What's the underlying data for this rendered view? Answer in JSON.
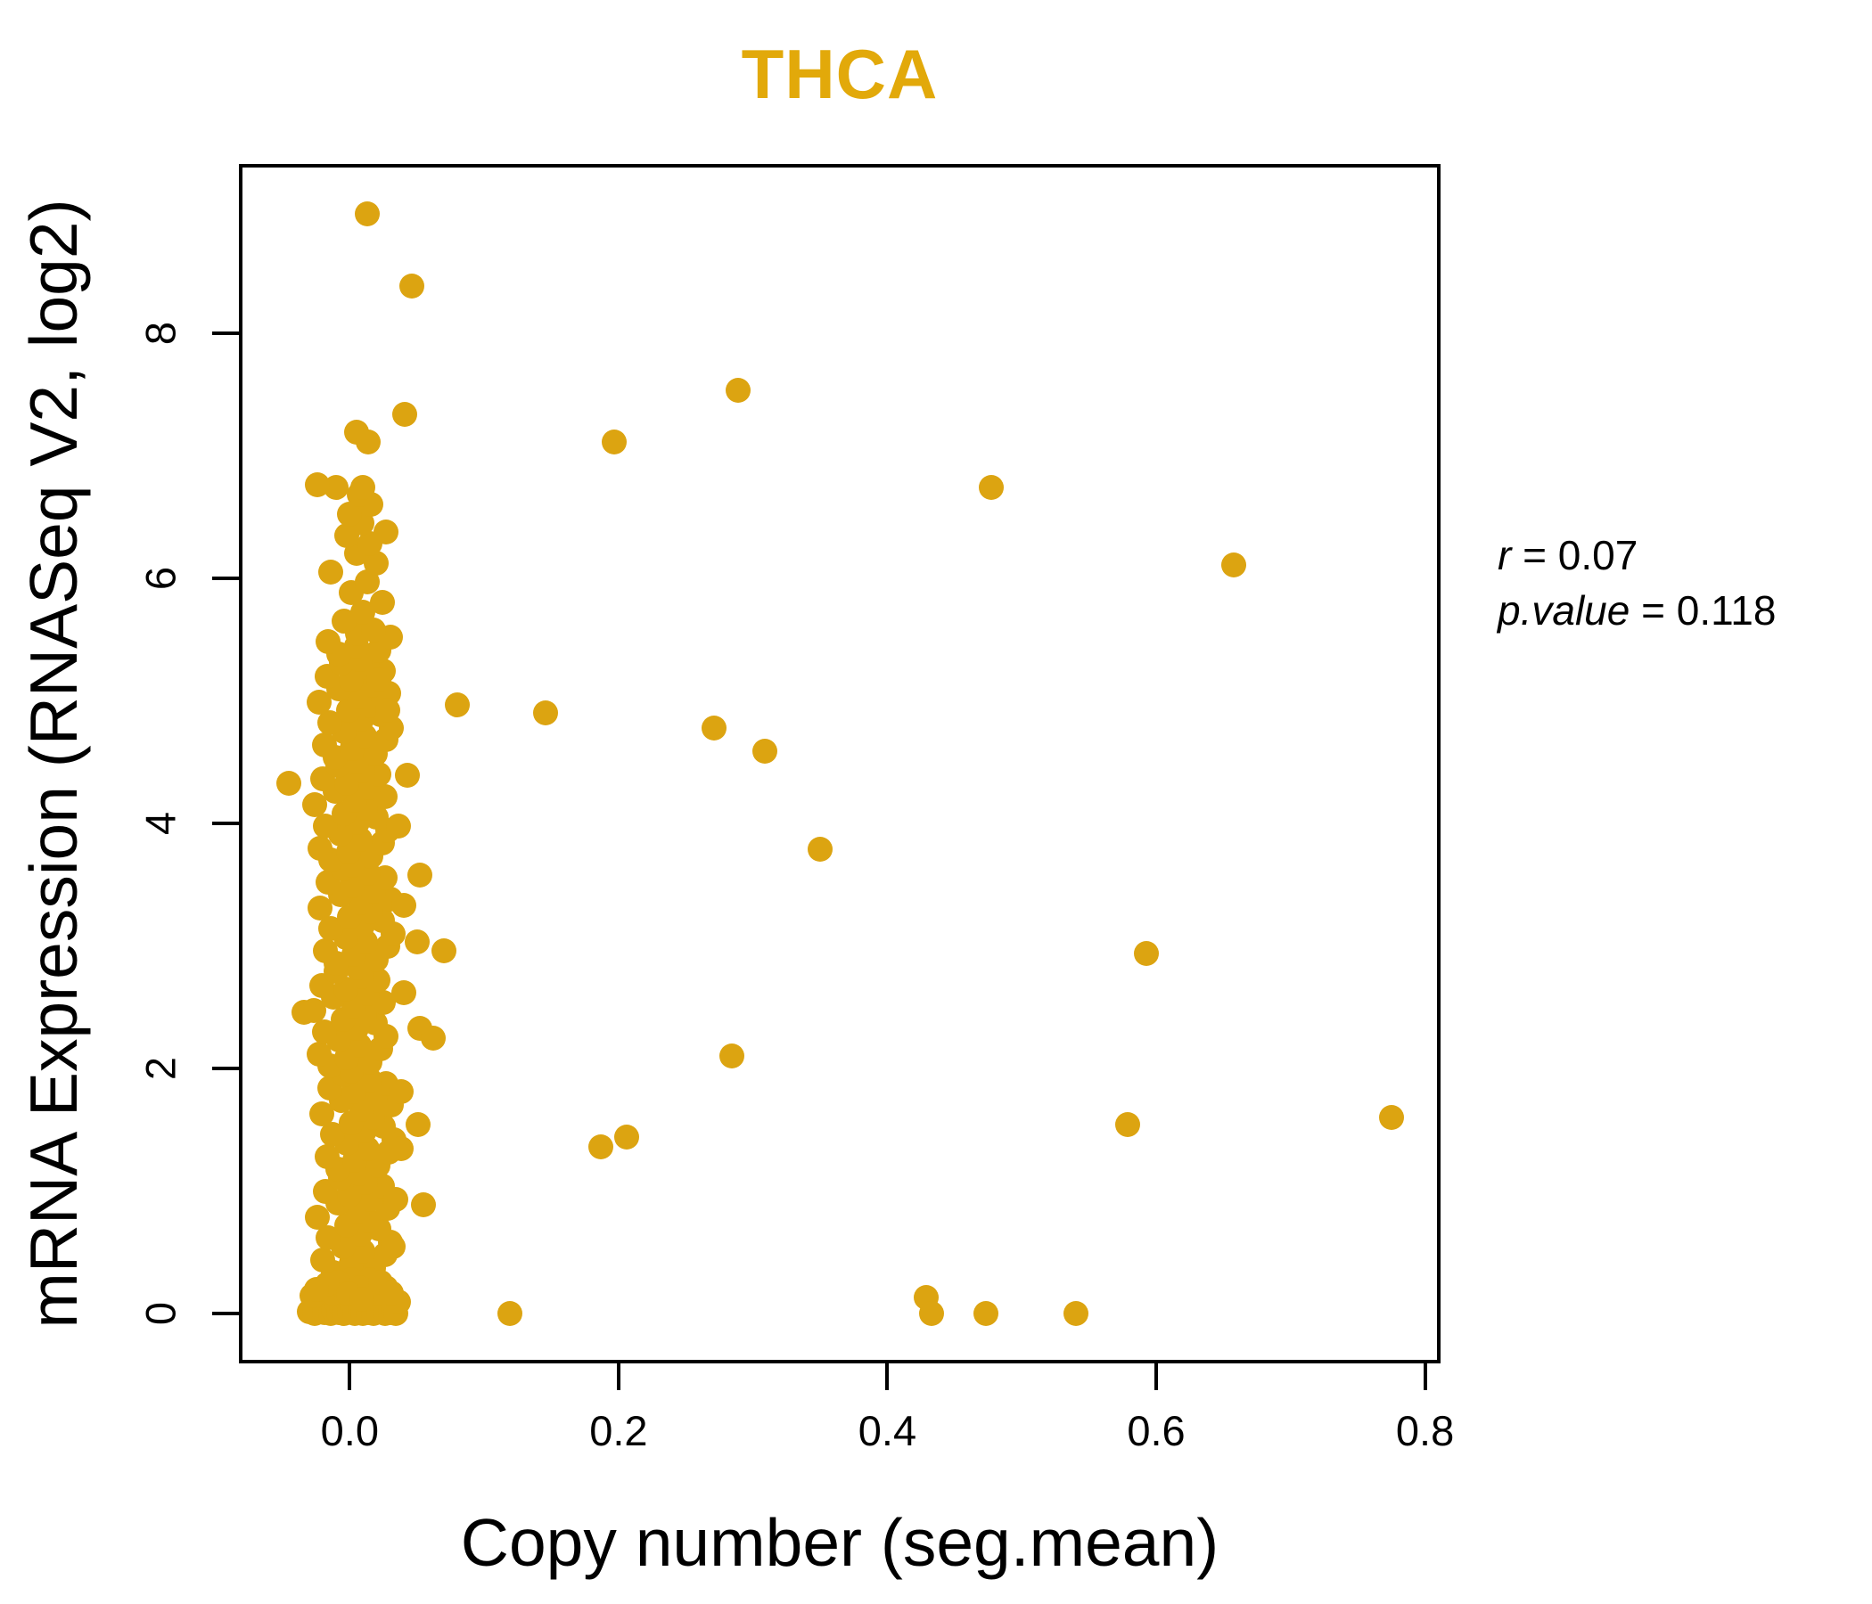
{
  "annotation": {
    "r_name": "r",
    "r_eq": " = 0.07",
    "p_name": "p.value",
    "p_eq": " = 0.118"
  },
  "chart_data": {
    "type": "scatter",
    "title": "THCA",
    "xlabel": "Copy number (seg.mean)",
    "ylabel": "mRNA Expression (RNASeq V2, log2)",
    "title_color": "#E2A90A",
    "point_color": "#DCA411",
    "axis_color": "#000000",
    "grid": false,
    "legend": "none",
    "xlim": [
      -0.0798,
      0.8089
    ],
    "ylim": [
      -0.376,
      9.35
    ],
    "x_ticks": {
      "values": [
        0.0,
        0.2,
        0.4,
        0.6,
        0.8
      ],
      "labels": [
        "0.0",
        "0.2",
        "0.4",
        "0.6",
        "0.8"
      ]
    },
    "y_ticks": {
      "values": [
        0,
        2,
        4,
        6,
        8
      ],
      "labels": [
        "0",
        "2",
        "4",
        "6",
        "8"
      ]
    },
    "correlation": {
      "r": 0.07,
      "p_value": 0.118
    },
    "points": [
      [
        0.004,
        0.3
      ],
      [
        -0.012,
        0.34
      ],
      [
        0.018,
        0.37
      ],
      [
        0.001,
        0.41
      ],
      [
        -0.02,
        0.44
      ],
      [
        0.026,
        0.48
      ],
      [
        0.01,
        0.51
      ],
      [
        -0.005,
        0.55
      ],
      [
        0.03,
        0.58
      ],
      [
        -0.016,
        0.62
      ],
      [
        0.008,
        0.65
      ],
      [
        0.022,
        0.69
      ],
      [
        -0.002,
        0.72
      ],
      [
        0.014,
        0.76
      ],
      [
        -0.024,
        0.79
      ],
      [
        0.006,
        0.83
      ],
      [
        0.028,
        0.86
      ],
      [
        -0.009,
        0.9
      ],
      [
        0.016,
        0.93
      ],
      [
        0.0,
        0.97
      ],
      [
        -0.018,
        1.0
      ],
      [
        0.024,
        1.04
      ],
      [
        0.012,
        1.07
      ],
      [
        -0.007,
        1.11
      ],
      [
        0.007,
        1.14
      ],
      [
        -0.009,
        1.18
      ],
      [
        0.021,
        1.21
      ],
      [
        0.004,
        1.25
      ],
      [
        -0.017,
        1.28
      ],
      [
        0.029,
        1.32
      ],
      [
        0.013,
        1.35
      ],
      [
        -0.002,
        1.39
      ],
      [
        0.033,
        1.42
      ],
      [
        -0.013,
        1.46
      ],
      [
        0.011,
        1.49
      ],
      [
        0.025,
        1.53
      ],
      [
        0.001,
        1.56
      ],
      [
        0.017,
        1.6
      ],
      [
        -0.021,
        1.63
      ],
      [
        0.009,
        1.67
      ],
      [
        0.031,
        1.7
      ],
      [
        -0.006,
        1.74
      ],
      [
        0.019,
        1.77
      ],
      [
        0.003,
        1.81
      ],
      [
        -0.015,
        1.84
      ],
      [
        0.027,
        1.88
      ],
      [
        0.015,
        1.91
      ],
      [
        -0.004,
        1.95
      ],
      [
        0.001,
        1.98
      ],
      [
        -0.015,
        2.02
      ],
      [
        0.015,
        2.05
      ],
      [
        -0.002,
        2.09
      ],
      [
        -0.023,
        2.12
      ],
      [
        0.023,
        2.16
      ],
      [
        0.007,
        2.19
      ],
      [
        -0.008,
        2.23
      ],
      [
        0.027,
        2.26
      ],
      [
        -0.019,
        2.3
      ],
      [
        0.005,
        2.33
      ],
      [
        0.019,
        2.37
      ],
      [
        -0.005,
        2.4
      ],
      [
        0.011,
        2.44
      ],
      [
        -0.027,
        2.47
      ],
      [
        0.003,
        2.51
      ],
      [
        0.025,
        2.54
      ],
      [
        -0.012,
        2.58
      ],
      [
        0.013,
        2.61
      ],
      [
        -0.003,
        2.65
      ],
      [
        -0.021,
        2.68
      ],
      [
        0.021,
        2.72
      ],
      [
        0.009,
        2.75
      ],
      [
        -0.01,
        2.79
      ],
      [
        0.006,
        2.82
      ],
      [
        -0.01,
        2.86
      ],
      [
        0.02,
        2.89
      ],
      [
        0.003,
        2.93
      ],
      [
        -0.018,
        2.96
      ],
      [
        0.028,
        3.0
      ],
      [
        0.012,
        3.03
      ],
      [
        -0.003,
        3.07
      ],
      [
        0.032,
        3.1
      ],
      [
        -0.014,
        3.14
      ],
      [
        0.01,
        3.17
      ],
      [
        0.024,
        3.21
      ],
      [
        0.0,
        3.24
      ],
      [
        0.016,
        3.28
      ],
      [
        -0.022,
        3.31
      ],
      [
        0.008,
        3.35
      ],
      [
        0.03,
        3.38
      ],
      [
        -0.007,
        3.42
      ],
      [
        0.018,
        3.45
      ],
      [
        0.002,
        3.49
      ],
      [
        -0.016,
        3.52
      ],
      [
        0.026,
        3.56
      ],
      [
        0.014,
        3.59
      ],
      [
        -0.005,
        3.63
      ],
      [
        0.002,
        3.66
      ],
      [
        -0.014,
        3.7
      ],
      [
        0.016,
        3.73
      ],
      [
        -0.001,
        3.77
      ],
      [
        -0.022,
        3.8
      ],
      [
        0.024,
        3.84
      ],
      [
        0.008,
        3.87
      ],
      [
        -0.007,
        3.91
      ],
      [
        0.028,
        3.94
      ],
      [
        -0.018,
        3.98
      ],
      [
        0.006,
        4.01
      ],
      [
        0.02,
        4.05
      ],
      [
        -0.004,
        4.08
      ],
      [
        0.012,
        4.12
      ],
      [
        -0.026,
        4.15
      ],
      [
        0.004,
        4.19
      ],
      [
        0.026,
        4.22
      ],
      [
        -0.011,
        4.26
      ],
      [
        0.014,
        4.29
      ],
      [
        -0.002,
        4.33
      ],
      [
        -0.02,
        4.36
      ],
      [
        0.022,
        4.4
      ],
      [
        0.01,
        4.43
      ],
      [
        -0.009,
        4.47
      ],
      [
        0.005,
        4.5
      ],
      [
        -0.011,
        4.54
      ],
      [
        0.019,
        4.57
      ],
      [
        0.002,
        4.61
      ],
      [
        -0.019,
        4.64
      ],
      [
        0.027,
        4.68
      ],
      [
        0.011,
        4.71
      ],
      [
        -0.004,
        4.75
      ],
      [
        0.031,
        4.78
      ],
      [
        -0.015,
        4.82
      ],
      [
        0.009,
        4.85
      ],
      [
        0.023,
        4.89
      ],
      [
        -0.001,
        4.92
      ],
      [
        0.015,
        4.96
      ],
      [
        -0.023,
        4.99
      ],
      [
        0.007,
        5.03
      ],
      [
        0.029,
        5.06
      ],
      [
        -0.008,
        5.1
      ],
      [
        0.017,
        5.13
      ],
      [
        0.001,
        5.17
      ],
      [
        -0.017,
        5.2
      ],
      [
        0.025,
        5.24
      ],
      [
        0.013,
        5.27
      ],
      [
        -0.006,
        5.31
      ],
      [
        0.008,
        5.34
      ],
      [
        -0.008,
        5.38
      ],
      [
        0.022,
        5.41
      ],
      [
        0.005,
        5.45
      ],
      [
        -0.016,
        5.48
      ],
      [
        0.03,
        5.52
      ],
      [
        0.006,
        5.55
      ],
      [
        0.018,
        5.58
      ],
      [
        -0.004,
        5.65
      ],
      [
        0.01,
        5.72
      ],
      [
        0.024,
        5.8
      ],
      [
        0.001,
        5.88
      ],
      [
        0.013,
        5.97
      ],
      [
        -0.014,
        6.05
      ],
      [
        0.02,
        6.12
      ],
      [
        0.005,
        6.2
      ],
      [
        0.015,
        6.28
      ],
      [
        -0.002,
        6.35
      ],
      [
        0.027,
        6.38
      ],
      [
        0.009,
        6.45
      ],
      [
        0.0,
        6.52
      ],
      [
        0.016,
        6.6
      ],
      [
        0.007,
        6.68
      ],
      [
        -0.01,
        6.74
      ],
      [
        -0.03,
        0.02
      ],
      [
        -0.026,
        0.0
      ],
      [
        -0.022,
        0.05
      ],
      [
        -0.019,
        0.01
      ],
      [
        -0.016,
        0.08
      ],
      [
        -0.014,
        0.0
      ],
      [
        -0.012,
        0.03
      ],
      [
        -0.01,
        0.1
      ],
      [
        -0.008,
        0.01
      ],
      [
        -0.006,
        0.06
      ],
      [
        -0.004,
        0.0
      ],
      [
        -0.002,
        0.12
      ],
      [
        0.0,
        0.02
      ],
      [
        0.002,
        0.07
      ],
      [
        0.004,
        0.0
      ],
      [
        0.006,
        0.14
      ],
      [
        0.008,
        0.03
      ],
      [
        0.01,
        0.0
      ],
      [
        0.012,
        0.09
      ],
      [
        0.014,
        0.01
      ],
      [
        0.016,
        0.05
      ],
      [
        0.018,
        0.0
      ],
      [
        0.02,
        0.11
      ],
      [
        0.022,
        0.02
      ],
      [
        0.024,
        0.06
      ],
      [
        0.026,
        0.0
      ],
      [
        0.028,
        0.08
      ],
      [
        0.03,
        0.01
      ],
      [
        0.032,
        0.04
      ],
      [
        0.034,
        0.0
      ],
      [
        0.036,
        0.1
      ],
      [
        -0.028,
        0.15
      ],
      [
        -0.021,
        0.2
      ],
      [
        -0.013,
        0.17
      ],
      [
        -0.005,
        0.22
      ],
      [
        0.003,
        0.18
      ],
      [
        0.011,
        0.25
      ],
      [
        0.019,
        0.16
      ],
      [
        0.027,
        0.21
      ],
      [
        0.001,
        0.28
      ],
      [
        -0.009,
        0.26
      ],
      [
        0.015,
        0.28
      ],
      [
        0.007,
        0.21
      ],
      [
        0.023,
        0.26
      ],
      [
        -0.017,
        0.24
      ],
      [
        0.031,
        0.17
      ],
      [
        -0.001,
        0.16
      ],
      [
        0.009,
        0.12
      ],
      [
        -0.045,
        4.33
      ],
      [
        -0.034,
        2.46
      ],
      [
        -0.025,
        0.2
      ],
      [
        0.032,
        0.55
      ],
      [
        0.034,
        0.93
      ],
      [
        0.055,
        0.89
      ],
      [
        0.038,
        1.35
      ],
      [
        0.051,
        1.54
      ],
      [
        0.038,
        1.81
      ],
      [
        0.052,
        2.33
      ],
      [
        0.062,
        2.25
      ],
      [
        0.04,
        2.62
      ],
      [
        0.07,
        2.96
      ],
      [
        0.05,
        3.03
      ],
      [
        0.04,
        3.33
      ],
      [
        0.052,
        3.58
      ],
      [
        0.036,
        3.98
      ],
      [
        0.043,
        4.39
      ],
      [
        0.028,
        4.92
      ],
      [
        0.022,
        5.17
      ],
      [
        0.08,
        4.97
      ],
      [
        0.146,
        4.9
      ],
      [
        0.041,
        7.34
      ],
      [
        0.005,
        7.19
      ],
      [
        0.014,
        7.11
      ],
      [
        -0.024,
        6.76
      ],
      [
        0.01,
        6.74
      ],
      [
        0.046,
        8.38
      ],
      [
        0.013,
        8.97
      ],
      [
        0.197,
        7.11
      ],
      [
        0.289,
        7.53
      ],
      [
        0.477,
        6.74
      ],
      [
        0.658,
        6.11
      ],
      [
        0.271,
        4.78
      ],
      [
        0.309,
        4.59
      ],
      [
        0.35,
        3.79
      ],
      [
        0.593,
        2.94
      ],
      [
        0.579,
        1.54
      ],
      [
        0.775,
        1.6
      ],
      [
        0.284,
        2.1
      ],
      [
        0.187,
        1.36
      ],
      [
        0.206,
        1.44
      ],
      [
        0.119,
        0.0
      ],
      [
        0.429,
        0.13
      ],
      [
        0.433,
        0.0
      ],
      [
        0.473,
        0.0
      ],
      [
        0.54,
        0.0
      ]
    ]
  }
}
